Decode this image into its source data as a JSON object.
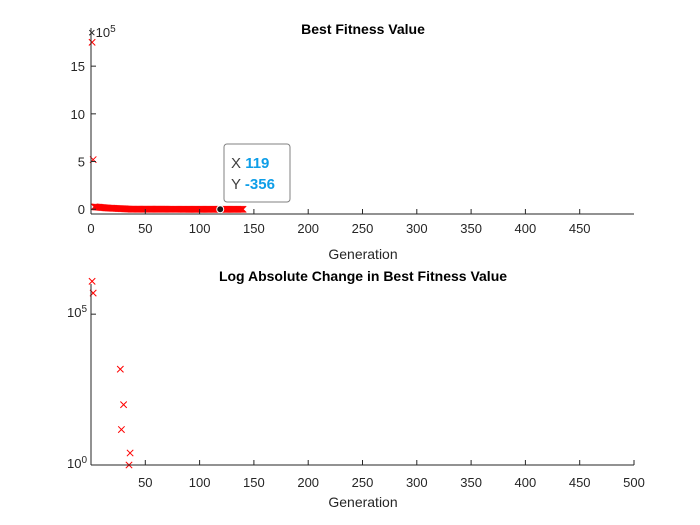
{
  "colors": {
    "marker": "#ff0000",
    "axis": "#262626",
    "datatip_value": "#0e9ee8"
  },
  "chart_data": [
    {
      "type": "scatter",
      "title": "Best Fitness Value",
      "xlabel": "Generation",
      "ylabel": "",
      "xlim": [
        0,
        500
      ],
      "ylim": [
        -50000,
        1900000
      ],
      "x_ticks": [
        0,
        50,
        100,
        150,
        200,
        250,
        300,
        350,
        400,
        450
      ],
      "y_ticks": [
        0,
        500000,
        1000000,
        1500000
      ],
      "y_tick_labels": [
        "0",
        "5",
        "10",
        "15"
      ],
      "exponent_label": {
        "base": "10",
        "power": "5"
      },
      "marker": "x",
      "series": [
        {
          "x": [
            1,
            2,
            3,
            4,
            5,
            6,
            7,
            8,
            9,
            10,
            11,
            12,
            13,
            14,
            15,
            16,
            17,
            18,
            19,
            20,
            21,
            22,
            23,
            24,
            25,
            26,
            27,
            28,
            29,
            30,
            31,
            32,
            33,
            34,
            35,
            36,
            37,
            38,
            39,
            40,
            41,
            42,
            43,
            44,
            45,
            46,
            47,
            48,
            49,
            50,
            51,
            52,
            53,
            54,
            55,
            56,
            57,
            58,
            59,
            60,
            61,
            62,
            63,
            64,
            65,
            66,
            67,
            68,
            69,
            70,
            71,
            72,
            73,
            74,
            75,
            76,
            77,
            78,
            79,
            80,
            81,
            82,
            83,
            84,
            85,
            86,
            87,
            88,
            89,
            90,
            91,
            92,
            93,
            94,
            95,
            96,
            97,
            98,
            99,
            100,
            101,
            102,
            103,
            104,
            105,
            106,
            107,
            108,
            109,
            110,
            111,
            112,
            113,
            114,
            115,
            116,
            117,
            118,
            119,
            120,
            121,
            122,
            123,
            124,
            125,
            126,
            127,
            128,
            129,
            130,
            131,
            132,
            133,
            134,
            135,
            136,
            137,
            138,
            139,
            140
          ],
          "y": [
            1750000,
            520000,
            25000,
            24000,
            23000,
            22000,
            21000,
            20000,
            19000,
            18000,
            17000,
            16000,
            15000,
            14000,
            13000,
            12000,
            11500,
            11000,
            10500,
            10000,
            9500,
            9000,
            8500,
            8000,
            7500,
            7000,
            6500,
            6000,
            5500,
            5000,
            4000,
            3000,
            2500,
            2000,
            1500,
            1200,
            1000,
            900,
            800,
            700,
            600,
            550,
            500,
            450,
            400,
            380,
            360,
            340,
            320,
            300,
            280,
            260,
            240,
            220,
            200,
            180,
            160,
            140,
            120,
            100,
            80,
            60,
            40,
            20,
            0,
            -20,
            -40,
            -60,
            -80,
            -100,
            -120,
            -140,
            -160,
            -180,
            -200,
            -210,
            -220,
            -230,
            -240,
            -250,
            -260,
            -270,
            -280,
            -290,
            -300,
            -305,
            -310,
            -315,
            -320,
            -325,
            -330,
            -333,
            -336,
            -339,
            -342,
            -344,
            -346,
            -348,
            -350,
            -351,
            -352,
            -353,
            -353,
            -354,
            -354,
            -354,
            -355,
            -355,
            -355,
            -355,
            -355,
            -355,
            -356,
            -356,
            -356,
            -356,
            -356,
            -356,
            -356,
            -356,
            -356,
            -356,
            -356,
            -356,
            -356,
            -356,
            -356,
            -356,
            -356,
            -356,
            -356,
            -356,
            -356,
            -356,
            -356,
            -356,
            -356,
            -356,
            -356,
            -356
          ]
        }
      ],
      "datatip": {
        "x_label": "X",
        "x_value": "119",
        "y_label": "Y",
        "y_value": "-356",
        "x": 119,
        "y": -356
      }
    },
    {
      "type": "scatter",
      "title": "Log Absolute Change in Best Fitness Value",
      "xlabel": "Generation",
      "ylabel": "",
      "xlim": [
        0,
        500
      ],
      "y_scale": "log",
      "ylim": [
        1,
        1000000
      ],
      "x_ticks": [
        50,
        100,
        150,
        200,
        250,
        300,
        350,
        400,
        450,
        500
      ],
      "y_ticks": [
        1,
        100000
      ],
      "y_tick_labels": [
        {
          "base": "10",
          "power": "0"
        },
        {
          "base": "10",
          "power": "5"
        }
      ],
      "marker": "x",
      "series": [
        {
          "x": [
            1,
            2,
            27,
            30,
            28,
            36,
            35
          ],
          "y": [
            1230000,
            500000,
            1500,
            100,
            15,
            2.5,
            1
          ]
        }
      ]
    }
  ]
}
